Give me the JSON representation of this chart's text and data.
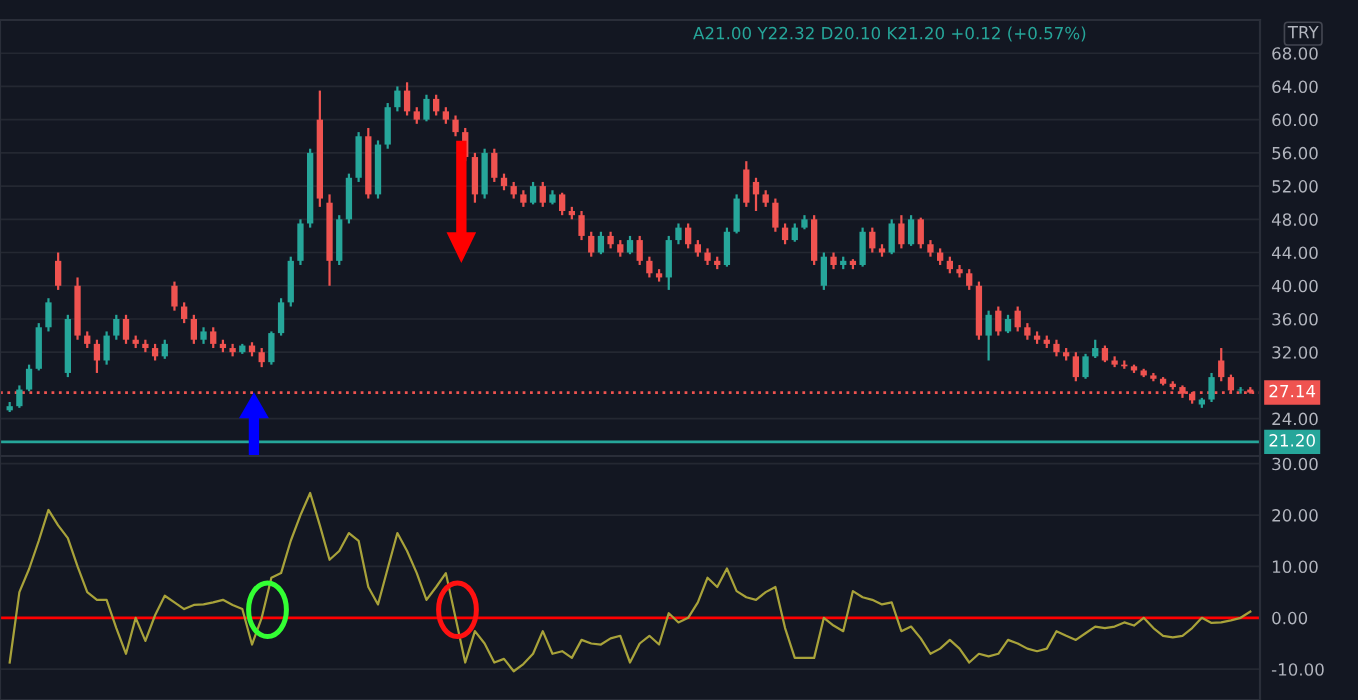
{
  "chart_data": [
    {
      "type": "candlestick",
      "categories": [
        null,
        null,
        null,
        null,
        null,
        null,
        null,
        null,
        null,
        null,
        null,
        null,
        null,
        null,
        null,
        null,
        null,
        null,
        null,
        null,
        null,
        null,
        null,
        null,
        null,
        null,
        null,
        null,
        null,
        null,
        null,
        null,
        null,
        null,
        null,
        null,
        null,
        null,
        null,
        null,
        null,
        null,
        null,
        null,
        null,
        null,
        null,
        null,
        null,
        null,
        null,
        null,
        null,
        null,
        null,
        null,
        null,
        null,
        null,
        null,
        null,
        null,
        null,
        null,
        null,
        null,
        null,
        null,
        null,
        null,
        null,
        null,
        null,
        null,
        null,
        null,
        null,
        null,
        null,
        null,
        null,
        null,
        null,
        null,
        null,
        null,
        null,
        null,
        null,
        null,
        null,
        null,
        null,
        null,
        null,
        null,
        null,
        null,
        null,
        null,
        null,
        null,
        null,
        null,
        null,
        null,
        null,
        null,
        null,
        null,
        null,
        null,
        null,
        null,
        null,
        null,
        null,
        null,
        null,
        null,
        null,
        null,
        null,
        null,
        null,
        null,
        null,
        null,
        null
      ],
      "ohlc": [
        [
          25,
          26,
          24.8,
          25.5
        ],
        [
          25.5,
          28,
          25.3,
          27.5
        ],
        [
          27.5,
          30.5,
          27.3,
          30
        ],
        [
          30,
          35.5,
          29.8,
          35
        ],
        [
          35,
          38.5,
          34.5,
          38
        ],
        [
          43,
          44,
          39.5,
          40
        ],
        [
          29.5,
          36.5,
          29,
          36
        ],
        [
          40,
          41,
          33.5,
          34
        ],
        [
          34,
          34.5,
          32.5,
          33
        ],
        [
          33,
          33.5,
          29.5,
          31
        ],
        [
          31,
          34.5,
          30.5,
          34
        ],
        [
          34,
          36.5,
          33.5,
          36
        ],
        [
          36,
          36.5,
          33,
          33.5
        ],
        [
          33.5,
          34,
          32.5,
          33
        ],
        [
          33,
          33.5,
          32,
          32.5
        ],
        [
          32.5,
          33,
          31,
          31.5
        ],
        [
          31.5,
          33.5,
          31.2,
          33
        ],
        [
          40,
          40.5,
          37,
          37.5
        ],
        [
          37.5,
          38,
          35.5,
          36
        ],
        [
          36,
          36.5,
          33,
          33.5
        ],
        [
          33.5,
          35,
          33,
          34.5
        ],
        [
          34.5,
          35,
          32.5,
          33
        ],
        [
          33,
          33.5,
          32,
          32.5
        ],
        [
          32.5,
          33,
          31.5,
          32
        ],
        [
          32,
          33,
          31.8,
          32.8
        ],
        [
          32.8,
          33.2,
          31.5,
          32
        ],
        [
          32,
          32.5,
          30.2,
          30.8
        ],
        [
          30.8,
          34.5,
          30.5,
          34.3
        ],
        [
          34.3,
          38.5,
          34,
          38
        ],
        [
          38,
          43.5,
          37.5,
          43
        ],
        [
          43,
          48,
          42.5,
          47.5
        ],
        [
          47.5,
          56.5,
          47,
          56
        ],
        [
          60,
          63.5,
          49.5,
          50.5
        ],
        [
          50,
          51,
          40,
          43
        ],
        [
          43,
          48.5,
          42.5,
          48
        ],
        [
          48,
          53.5,
          47.5,
          53
        ],
        [
          53,
          58.5,
          52.5,
          58
        ],
        [
          58,
          59,
          50.5,
          51
        ],
        [
          51,
          57.5,
          50.5,
          57
        ],
        [
          57,
          62,
          56.5,
          61.5
        ],
        [
          61.5,
          64,
          61,
          63.5
        ],
        [
          63.5,
          64.5,
          60.5,
          61
        ],
        [
          61,
          61.5,
          59.5,
          60
        ],
        [
          60,
          63,
          59.8,
          62.5
        ],
        [
          62.5,
          63,
          60.5,
          61
        ],
        [
          61,
          61.5,
          59.5,
          60
        ],
        [
          60,
          60.5,
          58,
          58.5
        ],
        [
          58.5,
          59,
          55,
          55.5
        ],
        [
          55.5,
          56,
          50,
          51
        ],
        [
          51,
          56.5,
          50.5,
          56
        ],
        [
          56,
          56.5,
          52.5,
          53
        ],
        [
          53,
          53.5,
          51.5,
          52
        ],
        [
          52,
          52.5,
          50.5,
          51
        ],
        [
          51,
          51.5,
          49.5,
          50
        ],
        [
          50,
          52.5,
          49.8,
          52
        ],
        [
          52,
          52.5,
          49.5,
          50
        ],
        [
          50,
          51.5,
          49.8,
          51
        ],
        [
          51,
          51.2,
          48.5,
          49
        ],
        [
          49,
          49.5,
          48,
          48.5
        ],
        [
          48.5,
          49,
          45.5,
          46
        ],
        [
          46,
          46.5,
          43.5,
          44
        ],
        [
          44,
          46.5,
          43.8,
          46
        ],
        [
          46,
          46.5,
          44.5,
          45
        ],
        [
          45,
          45.5,
          43.5,
          44
        ],
        [
          44,
          46,
          43.8,
          45.5
        ],
        [
          45.5,
          46,
          42.5,
          43
        ],
        [
          43,
          43.5,
          41,
          41.5
        ],
        [
          41.5,
          42,
          40.5,
          41
        ],
        [
          41,
          46,
          39.5,
          45.5
        ],
        [
          45.5,
          47.5,
          45,
          47
        ],
        [
          47,
          47.5,
          44.5,
          45
        ],
        [
          45,
          45.5,
          43.5,
          44
        ],
        [
          44,
          44.5,
          42.5,
          43
        ],
        [
          43,
          43.5,
          42,
          42.5
        ],
        [
          42.5,
          47,
          42.3,
          46.5
        ],
        [
          46.5,
          51,
          46.3,
          50.5
        ],
        [
          54,
          55,
          49.5,
          50
        ],
        [
          52.5,
          53,
          49,
          51
        ],
        [
          51,
          51.5,
          49.5,
          50
        ],
        [
          50,
          50.5,
          46.5,
          47
        ],
        [
          47,
          47.5,
          45,
          45.5
        ],
        [
          45.5,
          47.5,
          45.3,
          47
        ],
        [
          47,
          48.5,
          46.8,
          48
        ],
        [
          48,
          48.5,
          42.5,
          43
        ],
        [
          40,
          44,
          39.5,
          43.5
        ],
        [
          43.5,
          44,
          42,
          42.5
        ],
        [
          42.5,
          43.5,
          42,
          43
        ],
        [
          43,
          43.2,
          42,
          42.5
        ],
        [
          42.5,
          47,
          42.3,
          46.5
        ],
        [
          46.5,
          47,
          44,
          44.5
        ],
        [
          44.5,
          45,
          43.5,
          44
        ],
        [
          44,
          48,
          43.8,
          47.5
        ],
        [
          47.5,
          48.5,
          44.5,
          45
        ],
        [
          45,
          48.5,
          44.8,
          48
        ],
        [
          48,
          48.2,
          44.5,
          45
        ],
        [
          45,
          45.5,
          43.5,
          44
        ],
        [
          44,
          44.5,
          42.5,
          43
        ],
        [
          43,
          43.5,
          41.5,
          42
        ],
        [
          42,
          42.5,
          41,
          41.5
        ],
        [
          41.5,
          42,
          39.5,
          40
        ],
        [
          40,
          40.5,
          33.5,
          34
        ],
        [
          34,
          37,
          31,
          36.5
        ],
        [
          37,
          37.5,
          34,
          34.5
        ],
        [
          34.5,
          36.5,
          34.3,
          36
        ],
        [
          37,
          37.5,
          34.5,
          35
        ],
        [
          35,
          35.5,
          33.5,
          34
        ],
        [
          34,
          34.5,
          33,
          33.5
        ],
        [
          33.5,
          34,
          32.5,
          33
        ],
        [
          33,
          33.5,
          31.5,
          32
        ],
        [
          32,
          32.5,
          31,
          31.5
        ],
        [
          31.5,
          32,
          28.5,
          29
        ],
        [
          29,
          31.8,
          28.8,
          31.5
        ],
        [
          31.5,
          33.5,
          31.3,
          32.5
        ],
        [
          32.5,
          32.8,
          30.8,
          31
        ],
        [
          31,
          31.5,
          30.2,
          30.5
        ],
        [
          30.5,
          31,
          30,
          30.3
        ],
        [
          30.3,
          30.5,
          29.5,
          29.8
        ],
        [
          29.8,
          30,
          29,
          29.2
        ],
        [
          29.2,
          29.5,
          28.5,
          28.8
        ],
        [
          28.8,
          29,
          28,
          28.2
        ],
        [
          28.2,
          28.5,
          27.5,
          27.8
        ],
        [
          27.8,
          28,
          26.5,
          27
        ],
        [
          27,
          27.2,
          25.8,
          26.2
        ],
        [
          25.7,
          26.5,
          25.3,
          26.3
        ],
        [
          26.3,
          29.5,
          26,
          29
        ],
        [
          31,
          32.5,
          28.5,
          29
        ],
        [
          29,
          29.3,
          27,
          27.4
        ],
        [
          27.4,
          27.8,
          27,
          27.5
        ],
        [
          27.5,
          27.8,
          27,
          27.14
        ]
      ],
      "ylim": [
        19.5,
        72
      ],
      "yticks": [
        {
          "value": 24,
          "label": "24.00"
        },
        {
          "value": 32,
          "label": "32.00"
        },
        {
          "value": 36,
          "label": "36.00"
        },
        {
          "value": 40,
          "label": "40.00"
        },
        {
          "value": 44,
          "label": "44.00"
        },
        {
          "value": 48,
          "label": "48.00"
        },
        {
          "value": 52,
          "label": "52.00"
        },
        {
          "value": 56,
          "label": "56.00"
        },
        {
          "value": 60,
          "label": "60.00"
        },
        {
          "value": 64,
          "label": "64.00"
        },
        {
          "value": 68,
          "label": "68.00"
        }
      ],
      "ref_lines": [
        {
          "axis": "y",
          "value": 27.14,
          "label": "27.14",
          "color": "#ef5350",
          "line_style": "dotted"
        },
        {
          "axis": "y",
          "value": 21.2,
          "label": "21.20",
          "color": "#26a69a",
          "line_style": "solid"
        }
      ],
      "annotations": [
        "A21.00 Y22.32 D20.10 K21.20 +0.12 (+0.57%)",
        "TRY"
      ],
      "grid": "y",
      "tick_labels": "y"
    },
    {
      "type": "line",
      "categories": [
        null,
        null,
        null,
        null,
        null,
        null,
        null,
        null,
        null,
        null,
        null,
        null,
        null,
        null,
        null,
        null,
        null,
        null,
        null,
        null,
        null,
        null,
        null,
        null,
        null,
        null,
        null,
        null,
        null,
        null,
        null,
        null,
        null,
        null,
        null,
        null,
        null,
        null,
        null,
        null,
        null,
        null,
        null,
        null,
        null,
        null,
        null,
        null,
        null,
        null,
        null,
        null,
        null,
        null,
        null,
        null,
        null,
        null,
        null,
        null,
        null,
        null,
        null,
        null,
        null,
        null,
        null,
        null,
        null,
        null,
        null,
        null,
        null,
        null,
        null,
        null,
        null,
        null,
        null,
        null,
        null,
        null,
        null,
        null,
        null,
        null,
        null,
        null,
        null,
        null,
        null,
        null,
        null,
        null,
        null,
        null,
        null,
        null,
        null,
        null,
        null,
        null,
        null,
        null,
        null,
        null,
        null,
        null,
        null,
        null,
        null,
        null,
        null,
        null,
        null,
        null,
        null,
        null,
        null,
        null,
        null,
        null,
        null,
        null,
        null,
        null,
        null,
        null,
        null
      ],
      "series": [
        {
          "color": "#a8a23a",
          "values": [
            -8.7,
            5,
            9.5,
            15,
            21,
            18,
            15.5,
            10,
            5,
            3.5,
            3.5,
            -2,
            -7,
            0,
            -4.5,
            0.5,
            4.3,
            3,
            1.7,
            2.5,
            2.6,
            3,
            3.5,
            2.5,
            1.7,
            -5.2,
            0,
            7.8,
            8.7,
            15,
            20,
            24.3,
            18,
            11.3,
            13,
            16.5,
            15,
            6,
            2.6,
            9.6,
            16.5,
            13,
            8.7,
            3.5,
            6,
            8.7,
            0,
            -8.7,
            -2.6,
            -5,
            -8.7,
            -8,
            -10.4,
            -9,
            -7,
            -2.6,
            -7,
            -6.5,
            -7.8,
            -4.3,
            -5,
            -5.2,
            -4,
            -3.5,
            -8.7,
            -5,
            -3.5,
            -5.2,
            0.9,
            -0.9,
            0,
            3,
            7.8,
            6,
            9.6,
            5.2,
            4,
            3.5,
            5,
            6,
            -2,
            -7.8,
            -7.8,
            -7.8,
            0,
            -1.5,
            -2.6,
            5.2,
            4,
            3.5,
            2.6,
            3,
            -2.6,
            -1.7,
            -4,
            -7,
            -6,
            -4.3,
            -6,
            -8.7,
            -7,
            -7.5,
            -7,
            -4.3,
            -5,
            -6,
            -6.5,
            -6,
            -2.6,
            -3.5,
            -4.3,
            -3,
            -1.7,
            -2,
            -1.7,
            -0.9,
            -1.5,
            0,
            -2,
            -3.5,
            -3.8,
            -3.5,
            -2,
            0,
            -1,
            -0.9,
            -0.5,
            0,
            1.2
          ]
        }
      ],
      "ylim": [
        -16,
        31.5
      ],
      "yticks": [
        {
          "value": -10,
          "label": "-10.00"
        },
        {
          "value": 0,
          "label": "0.00"
        },
        {
          "value": 10,
          "label": "10.00"
        },
        {
          "value": 20,
          "label": "20.00"
        },
        {
          "value": 30,
          "label": "30.00"
        }
      ],
      "ref_lines": [
        {
          "axis": "y",
          "value": 0,
          "color": "#ff0000",
          "line_style": "solid"
        }
      ],
      "grid": "y",
      "tick_labels": "y"
    }
  ]
}
